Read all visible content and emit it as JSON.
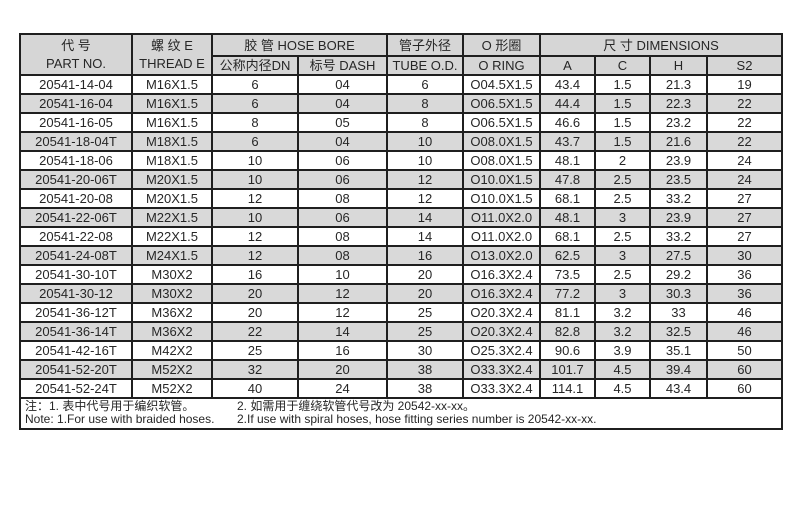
{
  "table": {
    "header": {
      "part_no_zh": "代 号",
      "part_no_en": "PART NO.",
      "thread_zh": "螺 纹 E",
      "thread_en": "THREAD E",
      "hose_bore": "胶 管 HOSE BORE",
      "dn": "公称内径DN",
      "dash": "标号 DASH",
      "tube_od_zh": "管子外径",
      "tube_od_en": "TUBE O.D.",
      "o_ring_zh": "O 形圈",
      "o_ring_en": "O RING",
      "dimensions": "尺 寸 DIMENSIONS",
      "dim_a": "A",
      "dim_c": "C",
      "dim_h": "H",
      "dim_s2": "S2"
    },
    "column_keys": [
      "part-no",
      "thread-e",
      "dn",
      "dash",
      "tube-od",
      "o-ring",
      "dim-a",
      "dim-c",
      "dim-h",
      "dim-s2"
    ],
    "rows": [
      [
        "20541-14-04",
        "M16X1.5",
        "6",
        "04",
        "6",
        "O04.5X1.5",
        "43.4",
        "1.5",
        "21.3",
        "19"
      ],
      [
        "20541-16-04",
        "M16X1.5",
        "6",
        "04",
        "8",
        "O06.5X1.5",
        "44.4",
        "1.5",
        "22.3",
        "22"
      ],
      [
        "20541-16-05",
        "M16X1.5",
        "8",
        "05",
        "8",
        "O06.5X1.5",
        "46.6",
        "1.5",
        "23.2",
        "22"
      ],
      [
        "20541-18-04T",
        "M18X1.5",
        "6",
        "04",
        "10",
        "O08.0X1.5",
        "43.7",
        "1.5",
        "21.6",
        "22"
      ],
      [
        "20541-18-06",
        "M18X1.5",
        "10",
        "06",
        "10",
        "O08.0X1.5",
        "48.1",
        "2",
        "23.9",
        "24"
      ],
      [
        "20541-20-06T",
        "M20X1.5",
        "10",
        "06",
        "12",
        "O10.0X1.5",
        "47.8",
        "2.5",
        "23.5",
        "24"
      ],
      [
        "20541-20-08",
        "M20X1.5",
        "12",
        "08",
        "12",
        "O10.0X1.5",
        "68.1",
        "2.5",
        "33.2",
        "27"
      ],
      [
        "20541-22-06T",
        "M22X1.5",
        "10",
        "06",
        "14",
        "O11.0X2.0",
        "48.1",
        "3",
        "23.9",
        "27"
      ],
      [
        "20541-22-08",
        "M22X1.5",
        "12",
        "08",
        "14",
        "O11.0X2.0",
        "68.1",
        "2.5",
        "33.2",
        "27"
      ],
      [
        "20541-24-08T",
        "M24X1.5",
        "12",
        "08",
        "16",
        "O13.0X2.0",
        "62.5",
        "3",
        "27.5",
        "30"
      ],
      [
        "20541-30-10T",
        "M30X2",
        "16",
        "10",
        "20",
        "O16.3X2.4",
        "73.5",
        "2.5",
        "29.2",
        "36"
      ],
      [
        "20541-30-12",
        "M30X2",
        "20",
        "12",
        "20",
        "O16.3X2.4",
        "77.2",
        "3",
        "30.3",
        "36"
      ],
      [
        "20541-36-12T",
        "M36X2",
        "20",
        "12",
        "25",
        "O20.3X2.4",
        "81.1",
        "3.2",
        "33",
        "46"
      ],
      [
        "20541-36-14T",
        "M36X2",
        "22",
        "14",
        "25",
        "O20.3X2.4",
        "82.8",
        "3.2",
        "32.5",
        "46"
      ],
      [
        "20541-42-16T",
        "M42X2",
        "25",
        "16",
        "30",
        "O25.3X2.4",
        "90.6",
        "3.9",
        "35.1",
        "50"
      ],
      [
        "20541-52-20T",
        "M52X2",
        "32",
        "20",
        "38",
        "O33.3X2.4",
        "101.7",
        "4.5",
        "39.4",
        "60"
      ],
      [
        "20541-52-24T",
        "M52X2",
        "40",
        "24",
        "38",
        "O33.3X2.4",
        "114.1",
        "4.5",
        "43.4",
        "60"
      ]
    ],
    "notes": {
      "zh_1": "注：1. 表中代号用于编织软管。",
      "zh_2": "2. 如需用于缠绕软管代号改为 20542-xx-xx。",
      "en_1": "Note: 1.For use with braided hoses.",
      "en_2": "2.If use with spiral hoses, hose fitting series number is 20542-xx-xx."
    },
    "colors": {
      "header_bg": "#d6d6d6",
      "alt_row_bg": "#d9d9d9",
      "border": "#1f1f1f",
      "text": "#262626",
      "page_bg": "#ffffff"
    }
  }
}
